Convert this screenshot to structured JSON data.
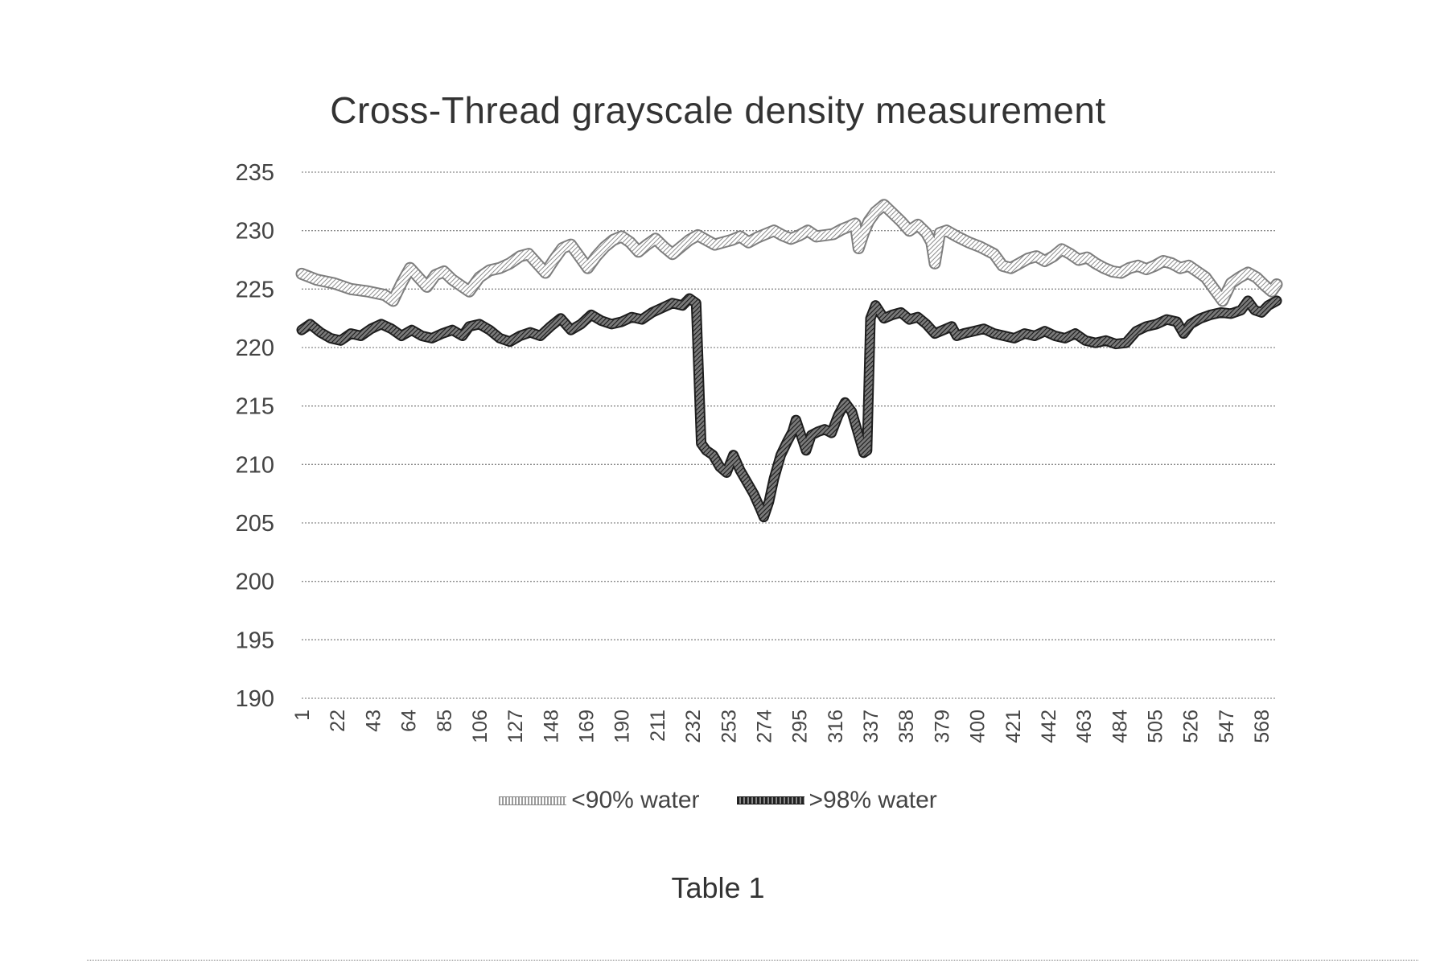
{
  "chart_data": {
    "type": "line",
    "title": "Cross-Thread grayscale density measurement",
    "xlabel": "",
    "ylabel": "",
    "ylim": [
      190,
      235
    ],
    "yticks": [
      190,
      195,
      200,
      205,
      210,
      215,
      220,
      225,
      230,
      235
    ],
    "xlim": [
      1,
      577
    ],
    "xticks": [
      1,
      22,
      43,
      64,
      85,
      106,
      127,
      148,
      169,
      190,
      211,
      232,
      253,
      274,
      295,
      316,
      337,
      358,
      379,
      400,
      421,
      442,
      463,
      484,
      505,
      526,
      547,
      568
    ],
    "grid": true,
    "legend_position": "bottom",
    "series": [
      {
        "name": "<90% water",
        "color": "#9a9a9a",
        "style": "light-hatched",
        "points": [
          [
            1,
            226.3
          ],
          [
            10,
            225.8
          ],
          [
            20,
            225.5
          ],
          [
            30,
            225.0
          ],
          [
            40,
            224.8
          ],
          [
            50,
            224.5
          ],
          [
            55,
            224.0
          ],
          [
            60,
            225.5
          ],
          [
            65,
            226.8
          ],
          [
            70,
            226.0
          ],
          [
            75,
            225.2
          ],
          [
            80,
            226.2
          ],
          [
            85,
            226.5
          ],
          [
            90,
            225.8
          ],
          [
            100,
            224.8
          ],
          [
            106,
            226.0
          ],
          [
            112,
            226.6
          ],
          [
            118,
            226.8
          ],
          [
            124,
            227.2
          ],
          [
            130,
            227.8
          ],
          [
            135,
            228.0
          ],
          [
            140,
            227.2
          ],
          [
            145,
            226.4
          ],
          [
            150,
            227.5
          ],
          [
            155,
            228.5
          ],
          [
            160,
            228.8
          ],
          [
            165,
            227.8
          ],
          [
            170,
            226.8
          ],
          [
            175,
            227.8
          ],
          [
            180,
            228.6
          ],
          [
            185,
            229.2
          ],
          [
            190,
            229.5
          ],
          [
            195,
            229.0
          ],
          [
            200,
            228.2
          ],
          [
            205,
            228.8
          ],
          [
            210,
            229.3
          ],
          [
            215,
            228.6
          ],
          [
            220,
            228.0
          ],
          [
            225,
            228.6
          ],
          [
            230,
            229.2
          ],
          [
            235,
            229.6
          ],
          [
            240,
            229.2
          ],
          [
            245,
            228.8
          ],
          [
            250,
            229.0
          ],
          [
            255,
            229.2
          ],
          [
            260,
            229.5
          ],
          [
            265,
            229.0
          ],
          [
            270,
            229.4
          ],
          [
            275,
            229.7
          ],
          [
            280,
            230.0
          ],
          [
            285,
            229.6
          ],
          [
            290,
            229.3
          ],
          [
            295,
            229.6
          ],
          [
            300,
            230.0
          ],
          [
            305,
            229.5
          ],
          [
            310,
            229.6
          ],
          [
            315,
            229.7
          ],
          [
            320,
            230.1
          ],
          [
            325,
            230.4
          ],
          [
            328,
            230.6
          ],
          [
            330,
            228.5
          ],
          [
            333,
            229.8
          ],
          [
            336,
            230.8
          ],
          [
            340,
            231.6
          ],
          [
            345,
            232.2
          ],
          [
            350,
            231.5
          ],
          [
            355,
            230.8
          ],
          [
            360,
            230.0
          ],
          [
            365,
            230.5
          ],
          [
            370,
            229.8
          ],
          [
            373,
            229.0
          ],
          [
            375,
            227.2
          ],
          [
            378,
            229.8
          ],
          [
            382,
            230.0
          ],
          [
            388,
            229.5
          ],
          [
            395,
            229.0
          ],
          [
            402,
            228.6
          ],
          [
            410,
            228.0
          ],
          [
            415,
            227.0
          ],
          [
            420,
            226.8
          ],
          [
            425,
            227.2
          ],
          [
            430,
            227.6
          ],
          [
            435,
            227.8
          ],
          [
            440,
            227.4
          ],
          [
            445,
            227.8
          ],
          [
            450,
            228.4
          ],
          [
            455,
            228.0
          ],
          [
            460,
            227.5
          ],
          [
            465,
            227.7
          ],
          [
            470,
            227.2
          ],
          [
            475,
            226.8
          ],
          [
            480,
            226.5
          ],
          [
            485,
            226.4
          ],
          [
            490,
            226.8
          ],
          [
            495,
            227.0
          ],
          [
            500,
            226.7
          ],
          [
            505,
            227.0
          ],
          [
            510,
            227.4
          ],
          [
            515,
            227.2
          ],
          [
            520,
            226.8
          ],
          [
            525,
            227.0
          ],
          [
            530,
            226.5
          ],
          [
            535,
            226.0
          ],
          [
            540,
            225.0
          ],
          [
            545,
            224.0
          ],
          [
            550,
            225.5
          ],
          [
            555,
            226.0
          ],
          [
            560,
            226.4
          ],
          [
            565,
            226.0
          ],
          [
            570,
            225.3
          ],
          [
            574,
            224.8
          ],
          [
            577,
            225.4
          ]
        ]
      },
      {
        "name": ">98% water",
        "color": "#3a3a3a",
        "style": "dark-hatched",
        "points": [
          [
            1,
            221.5
          ],
          [
            6,
            222.0
          ],
          [
            12,
            221.3
          ],
          [
            18,
            220.8
          ],
          [
            24,
            220.6
          ],
          [
            30,
            221.2
          ],
          [
            36,
            221.0
          ],
          [
            42,
            221.6
          ],
          [
            48,
            222.0
          ],
          [
            54,
            221.6
          ],
          [
            60,
            221.0
          ],
          [
            66,
            221.5
          ],
          [
            72,
            221.0
          ],
          [
            78,
            220.8
          ],
          [
            84,
            221.2
          ],
          [
            90,
            221.5
          ],
          [
            96,
            221.0
          ],
          [
            100,
            221.8
          ],
          [
            106,
            222.0
          ],
          [
            112,
            221.5
          ],
          [
            118,
            220.8
          ],
          [
            124,
            220.5
          ],
          [
            130,
            221.0
          ],
          [
            136,
            221.3
          ],
          [
            142,
            221.0
          ],
          [
            148,
            221.8
          ],
          [
            154,
            222.5
          ],
          [
            160,
            221.5
          ],
          [
            166,
            222.0
          ],
          [
            172,
            222.8
          ],
          [
            178,
            222.3
          ],
          [
            184,
            222.0
          ],
          [
            190,
            222.2
          ],
          [
            196,
            222.6
          ],
          [
            202,
            222.4
          ],
          [
            208,
            223.0
          ],
          [
            214,
            223.4
          ],
          [
            220,
            223.8
          ],
          [
            226,
            223.6
          ],
          [
            230,
            224.2
          ],
          [
            234,
            223.8
          ],
          [
            237,
            211.8
          ],
          [
            240,
            211.2
          ],
          [
            244,
            210.8
          ],
          [
            248,
            209.8
          ],
          [
            252,
            209.3
          ],
          [
            256,
            210.8
          ],
          [
            260,
            209.5
          ],
          [
            264,
            208.5
          ],
          [
            268,
            207.5
          ],
          [
            272,
            206.2
          ],
          [
            274,
            205.5
          ],
          [
            277,
            206.8
          ],
          [
            280,
            208.8
          ],
          [
            284,
            210.8
          ],
          [
            288,
            212.0
          ],
          [
            291,
            212.8
          ],
          [
            293,
            213.8
          ],
          [
            296,
            212.5
          ],
          [
            299,
            211.2
          ],
          [
            302,
            212.5
          ],
          [
            306,
            212.8
          ],
          [
            310,
            213.0
          ],
          [
            314,
            212.7
          ],
          [
            318,
            214.2
          ],
          [
            322,
            215.3
          ],
          [
            326,
            214.5
          ],
          [
            330,
            212.5
          ],
          [
            333,
            211.0
          ],
          [
            335,
            211.2
          ],
          [
            337,
            222.5
          ],
          [
            340,
            223.6
          ],
          [
            345,
            222.5
          ],
          [
            350,
            222.8
          ],
          [
            355,
            223.0
          ],
          [
            360,
            222.4
          ],
          [
            365,
            222.6
          ],
          [
            370,
            222.0
          ],
          [
            375,
            221.2
          ],
          [
            380,
            221.5
          ],
          [
            385,
            221.8
          ],
          [
            388,
            221.0
          ],
          [
            392,
            221.2
          ],
          [
            398,
            221.4
          ],
          [
            404,
            221.6
          ],
          [
            410,
            221.2
          ],
          [
            416,
            221.0
          ],
          [
            422,
            220.8
          ],
          [
            428,
            221.2
          ],
          [
            434,
            221.0
          ],
          [
            440,
            221.4
          ],
          [
            446,
            221.0
          ],
          [
            452,
            220.8
          ],
          [
            458,
            221.2
          ],
          [
            464,
            220.6
          ],
          [
            470,
            220.4
          ],
          [
            476,
            220.6
          ],
          [
            482,
            220.3
          ],
          [
            488,
            220.4
          ],
          [
            494,
            221.4
          ],
          [
            500,
            221.8
          ],
          [
            506,
            222.0
          ],
          [
            512,
            222.4
          ],
          [
            518,
            222.2
          ],
          [
            522,
            221.2
          ],
          [
            526,
            222.0
          ],
          [
            532,
            222.5
          ],
          [
            538,
            222.8
          ],
          [
            544,
            223.0
          ],
          [
            550,
            222.9
          ],
          [
            556,
            223.2
          ],
          [
            560,
            224.0
          ],
          [
            564,
            223.2
          ],
          [
            568,
            223.0
          ],
          [
            572,
            223.6
          ],
          [
            577,
            224.0
          ]
        ]
      }
    ]
  },
  "caption": "Table 1"
}
